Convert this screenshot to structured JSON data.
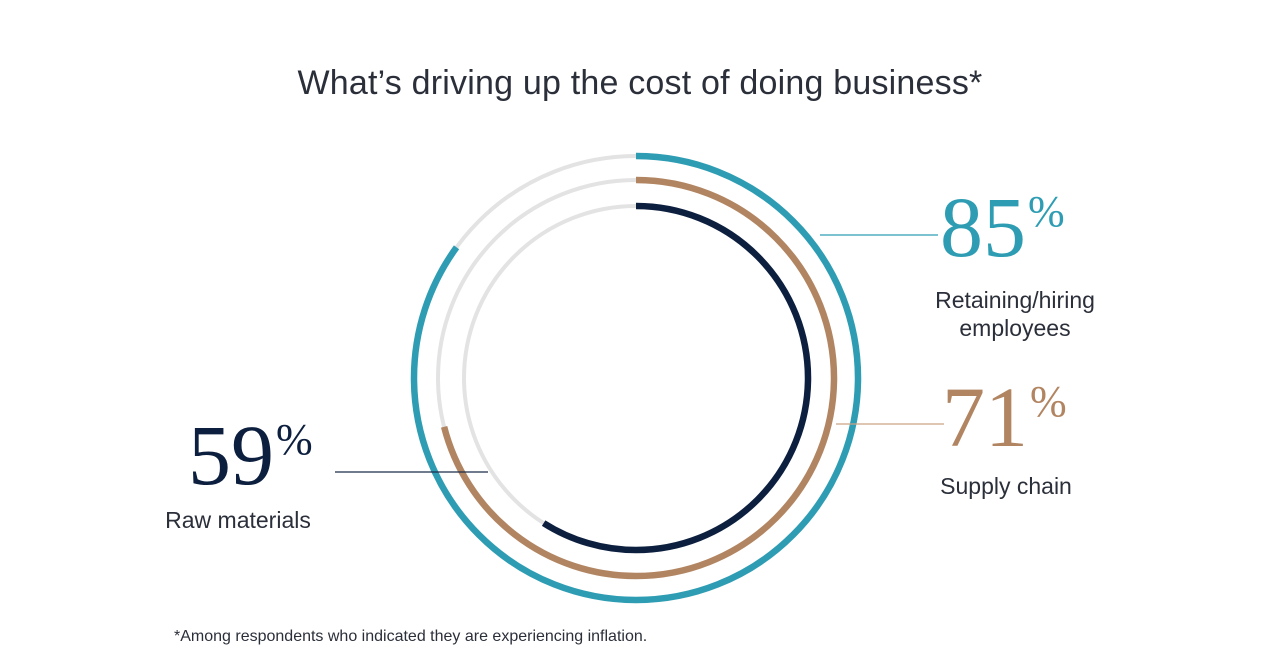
{
  "title": "What’s driving up the cost of doing business*",
  "footnote": "*Among respondents who indicated they are experiencing inflation.",
  "colors": {
    "track": "#e3e3e3",
    "teal": "#2e9db3",
    "tan": "#b28562",
    "navy": "#0d1f3f",
    "leader_teal": "#2e9db3",
    "leader_tan": "#c9a484",
    "leader_navy": "#1b2c4a"
  },
  "chart_data": {
    "type": "pie",
    "subtype": "concentric-radial-progress",
    "title": "What’s driving up the cost of doing business*",
    "unit": "%",
    "series": [
      {
        "name": "Retaining/hiring employees",
        "value": 85,
        "display": "85",
        "color": "#2e9db3"
      },
      {
        "name": "Supply chain",
        "value": 71,
        "display": "71",
        "color": "#b28562"
      },
      {
        "name": "Raw materials",
        "value": 59,
        "display": "59",
        "color": "#0d1f3f"
      }
    ]
  },
  "labels": {
    "employees": {
      "value": "85",
      "pct": "%",
      "line1": "Retaining/hiring",
      "line2": "employees"
    },
    "supply": {
      "value": "71",
      "pct": "%",
      "line1": "Supply chain"
    },
    "raw": {
      "value": "59",
      "pct": "%",
      "line1": "Raw materials"
    }
  }
}
